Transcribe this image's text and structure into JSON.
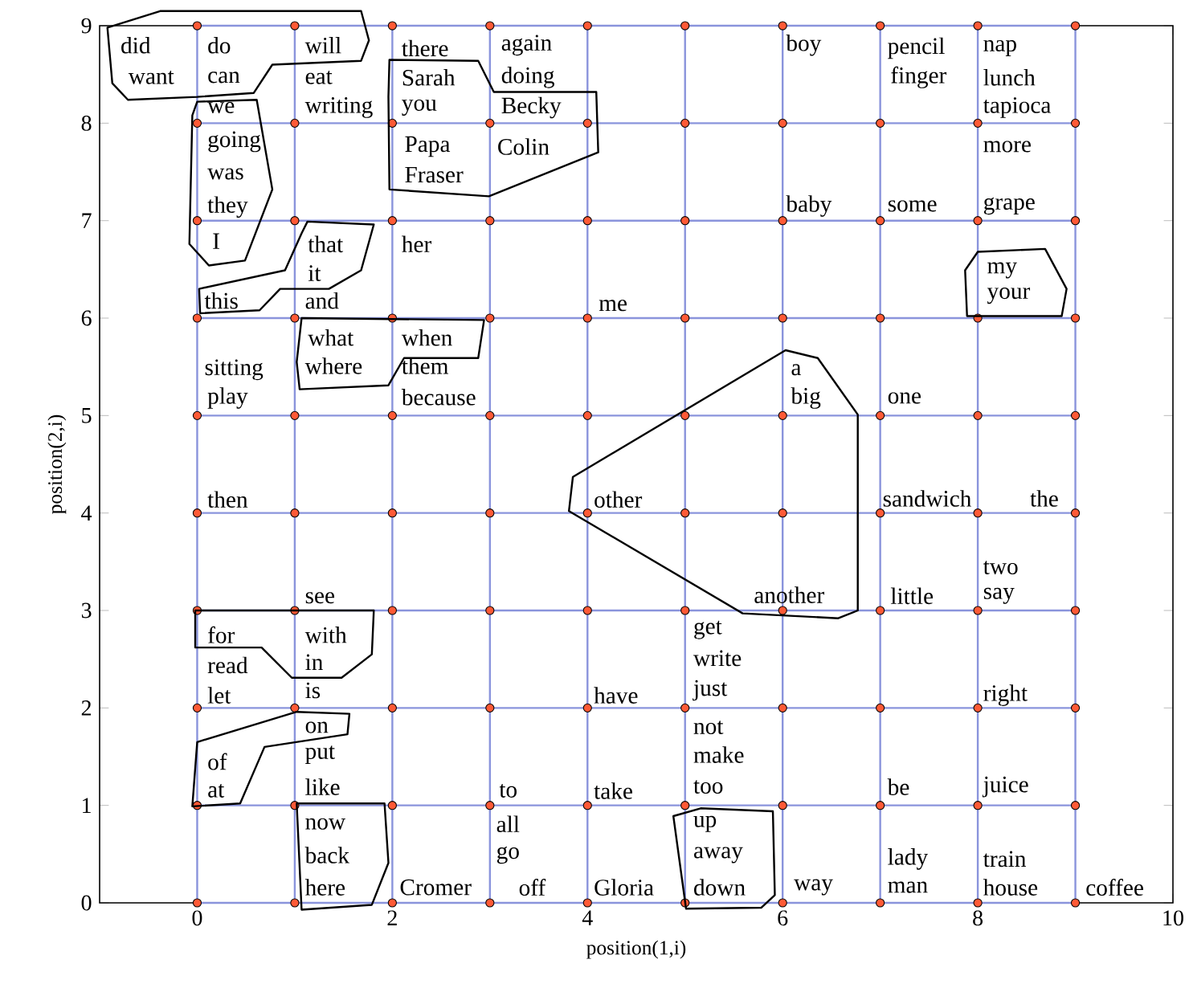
{
  "chart_data": {
    "type": "scatter",
    "xlabel": "position(1,i)",
    "ylabel": "position(2,i)",
    "xlim": [
      -1,
      10
    ],
    "xticks": [
      0,
      2,
      4,
      6,
      8,
      10
    ],
    "ylim": [
      0,
      9
    ],
    "yticks": [
      0,
      1,
      2,
      3,
      4,
      5,
      6,
      7,
      8,
      9
    ],
    "grid": false,
    "series": [
      {
        "type": "line",
        "color": "#8a94dc",
        "x": [
          0,
          1,
          2,
          3,
          4,
          5,
          6,
          7,
          8,
          9
        ],
        "values": [
          0,
          0,
          0,
          0,
          0,
          0,
          0,
          0,
          0,
          0
        ]
      },
      {
        "type": "line",
        "color": "#8a94dc",
        "x": [
          0,
          1,
          2,
          3,
          4,
          5,
          6,
          7,
          8,
          9
        ],
        "values": [
          1,
          1,
          1,
          1,
          1,
          1,
          1,
          1,
          1,
          1
        ]
      },
      {
        "type": "line",
        "color": "#8a94dc",
        "x": [
          0,
          1,
          2,
          3,
          4,
          5,
          6,
          7,
          8,
          9
        ],
        "values": [
          2,
          2,
          2,
          2,
          2,
          2,
          2,
          2,
          2,
          2
        ]
      },
      {
        "type": "line",
        "color": "#8a94dc",
        "x": [
          0,
          1,
          2,
          3,
          4,
          5,
          6,
          7,
          8,
          9
        ],
        "values": [
          3,
          3,
          3,
          3,
          3,
          3,
          3,
          3,
          3,
          3
        ]
      },
      {
        "type": "line",
        "color": "#8a94dc",
        "x": [
          0,
          1,
          2,
          3,
          4,
          5,
          6,
          7,
          8,
          9
        ],
        "values": [
          4,
          4,
          4,
          4,
          4,
          4,
          4,
          4,
          4,
          4
        ]
      },
      {
        "type": "line",
        "color": "#8a94dc",
        "x": [
          0,
          1,
          2,
          3,
          4,
          5,
          6,
          7,
          8,
          9
        ],
        "values": [
          5,
          5,
          5,
          5,
          5,
          5,
          5,
          5,
          5,
          5
        ]
      },
      {
        "type": "line",
        "color": "#8a94dc",
        "x": [
          0,
          1,
          2,
          3,
          4,
          5,
          6,
          7,
          8,
          9
        ],
        "values": [
          6,
          6,
          6,
          6,
          6,
          6,
          6,
          6,
          6,
          6
        ]
      },
      {
        "type": "line",
        "color": "#8a94dc",
        "x": [
          0,
          1,
          2,
          3,
          4,
          5,
          6,
          7,
          8,
          9
        ],
        "values": [
          7,
          7,
          7,
          7,
          7,
          7,
          7,
          7,
          7,
          7
        ]
      },
      {
        "type": "line",
        "color": "#8a94dc",
        "x": [
          0,
          1,
          2,
          3,
          4,
          5,
          6,
          7,
          8,
          9
        ],
        "values": [
          8,
          8,
          8,
          8,
          8,
          8,
          8,
          8,
          8,
          8
        ]
      },
      {
        "type": "line",
        "color": "#8a94dc",
        "x": [
          0,
          1,
          2,
          3,
          4,
          5,
          6,
          7,
          8,
          9
        ],
        "values": [
          9,
          9,
          9,
          9,
          9,
          9,
          9,
          9,
          9,
          9
        ]
      },
      {
        "type": "line",
        "color": "#8a94dc",
        "x": [
          0,
          0,
          0,
          0,
          0,
          0,
          0,
          0,
          0,
          0
        ],
        "values": [
          0,
          1,
          2,
          3,
          4,
          5,
          6,
          7,
          8,
          9
        ]
      },
      {
        "type": "line",
        "color": "#8a94dc",
        "x": [
          1,
          1,
          1,
          1,
          1,
          1,
          1,
          1,
          1,
          1
        ],
        "values": [
          0,
          1,
          2,
          3,
          4,
          5,
          6,
          7,
          8,
          9
        ]
      },
      {
        "type": "line",
        "color": "#8a94dc",
        "x": [
          2,
          2,
          2,
          2,
          2,
          2,
          2,
          2,
          2,
          2
        ],
        "values": [
          0,
          1,
          2,
          3,
          4,
          5,
          6,
          7,
          8,
          9
        ]
      },
      {
        "type": "line",
        "color": "#8a94dc",
        "x": [
          3,
          3,
          3,
          3,
          3,
          3,
          3,
          3,
          3,
          3
        ],
        "values": [
          0,
          1,
          2,
          3,
          4,
          5,
          6,
          7,
          8,
          9
        ]
      },
      {
        "type": "line",
        "color": "#8a94dc",
        "x": [
          4,
          4,
          4,
          4,
          4,
          4,
          4,
          4,
          4,
          4
        ],
        "values": [
          0,
          1,
          2,
          3,
          4,
          5,
          6,
          7,
          8,
          9
        ]
      },
      {
        "type": "line",
        "color": "#8a94dc",
        "x": [
          5,
          5,
          5,
          5,
          5,
          5,
          5,
          5,
          5,
          5
        ],
        "values": [
          0,
          1,
          2,
          3,
          4,
          5,
          6,
          7,
          8,
          9
        ]
      },
      {
        "type": "line",
        "color": "#8a94dc",
        "x": [
          6,
          6,
          6,
          6,
          6,
          6,
          6,
          6,
          6,
          6
        ],
        "values": [
          0,
          1,
          2,
          3,
          4,
          5,
          6,
          7,
          8,
          9
        ]
      },
      {
        "type": "line",
        "color": "#8a94dc",
        "x": [
          7,
          7,
          7,
          7,
          7,
          7,
          7,
          7,
          7,
          7
        ],
        "values": [
          0,
          1,
          2,
          3,
          4,
          5,
          6,
          7,
          8,
          9
        ]
      },
      {
        "type": "line",
        "color": "#8a94dc",
        "x": [
          8,
          8,
          8,
          8,
          8,
          8,
          8,
          8,
          8,
          8
        ],
        "values": [
          0,
          1,
          2,
          3,
          4,
          5,
          6,
          7,
          8,
          9
        ]
      },
      {
        "type": "line",
        "color": "#8a94dc",
        "x": [
          9,
          9,
          9,
          9,
          9,
          9,
          9,
          9,
          9,
          9
        ],
        "values": [
          0,
          1,
          2,
          3,
          4,
          5,
          6,
          7,
          8,
          9
        ]
      },
      {
        "color": "#ff5a36",
        "x": [
          0,
          1,
          2,
          3,
          4,
          5,
          6,
          7,
          8,
          9,
          0,
          1,
          2,
          3,
          4,
          5,
          6,
          7,
          8,
          9,
          0,
          1,
          2,
          3,
          4,
          5,
          6,
          7,
          8,
          9,
          0,
          1,
          2,
          3,
          4,
          5,
          6,
          7,
          8,
          9,
          0,
          1,
          2,
          3,
          4,
          5,
          6,
          7,
          8,
          9,
          0,
          1,
          2,
          3,
          4,
          5,
          6,
          7,
          8,
          9,
          0,
          1,
          2,
          3,
          4,
          5,
          6,
          7,
          8,
          9,
          0,
          1,
          2,
          3,
          4,
          5,
          6,
          7,
          8,
          9,
          0,
          1,
          2,
          3,
          4,
          5,
          6,
          7,
          8,
          9,
          0,
          1,
          2,
          3,
          4,
          5,
          6,
          7,
          8,
          9
        ],
        "values": [
          0,
          0,
          0,
          0,
          0,
          0,
          0,
          0,
          0,
          0,
          1,
          1,
          1,
          1,
          1,
          1,
          1,
          1,
          1,
          1,
          2,
          2,
          2,
          2,
          2,
          2,
          2,
          2,
          2,
          2,
          3,
          3,
          3,
          3,
          3,
          3,
          3,
          3,
          3,
          3,
          4,
          4,
          4,
          4,
          4,
          4,
          4,
          4,
          4,
          4,
          5,
          5,
          5,
          5,
          5,
          5,
          5,
          5,
          5,
          5,
          6,
          6,
          6,
          6,
          6,
          6,
          6,
          6,
          6,
          6,
          7,
          7,
          7,
          7,
          7,
          7,
          7,
          7,
          7,
          7,
          8,
          8,
          8,
          8,
          8,
          8,
          8,
          8,
          8,
          8,
          9,
          9,
          9,
          9,
          9,
          9,
          9,
          9,
          9,
          9
        ]
      }
    ],
    "annotations": [
      {
        "text": "did",
        "x": 0,
        "y": 9
      },
      {
        "text": "want",
        "x": 0,
        "y": 8
      },
      {
        "text": "do",
        "x": 0,
        "y": 9
      },
      {
        "text": "can",
        "x": 0,
        "y": 8
      },
      {
        "text": "we",
        "x": 0,
        "y": 8
      },
      {
        "text": "going",
        "x": 0,
        "y": 8
      },
      {
        "text": "was",
        "x": 0,
        "y": 7
      },
      {
        "text": "they",
        "x": 0,
        "y": 7
      },
      {
        "text": "I",
        "x": 0,
        "y": 7
      },
      {
        "text": "will",
        "x": 1,
        "y": 9
      },
      {
        "text": "eat",
        "x": 1,
        "y": 8
      },
      {
        "text": "writing",
        "x": 1,
        "y": 8
      },
      {
        "text": "that",
        "x": 1,
        "y": 7
      },
      {
        "text": "it",
        "x": 1,
        "y": 6
      },
      {
        "text": "and",
        "x": 1,
        "y": 6
      },
      {
        "text": "this",
        "x": 0,
        "y": 6
      },
      {
        "text": "her",
        "x": 2,
        "y": 7
      },
      {
        "text": "there",
        "x": 2,
        "y": 9
      },
      {
        "text": "Sarah",
        "x": 2,
        "y": 8
      },
      {
        "text": "you",
        "x": 2,
        "y": 8
      },
      {
        "text": "Papa",
        "x": 2,
        "y": 8
      },
      {
        "text": "Fraser",
        "x": 2,
        "y": 7
      },
      {
        "text": "again",
        "x": 3,
        "y": 9
      },
      {
        "text": "doing",
        "x": 3,
        "y": 8
      },
      {
        "text": "Becky",
        "x": 3,
        "y": 8
      },
      {
        "text": "Colin",
        "x": 3,
        "y": 8
      },
      {
        "text": "boy",
        "x": 6,
        "y": 9
      },
      {
        "text": "pencil",
        "x": 7,
        "y": 9
      },
      {
        "text": "finger",
        "x": 7,
        "y": 8
      },
      {
        "text": "nap",
        "x": 8,
        "y": 9
      },
      {
        "text": "lunch",
        "x": 8,
        "y": 8
      },
      {
        "text": "tapioca",
        "x": 8,
        "y": 8
      },
      {
        "text": "more",
        "x": 8,
        "y": 8
      },
      {
        "text": "baby",
        "x": 6,
        "y": 7
      },
      {
        "text": "some",
        "x": 7,
        "y": 7
      },
      {
        "text": "grape",
        "x": 8,
        "y": 7
      },
      {
        "text": "my",
        "x": 8,
        "y": 6
      },
      {
        "text": "your",
        "x": 8,
        "y": 6
      },
      {
        "text": "me",
        "x": 4,
        "y": 6
      },
      {
        "text": "what",
        "x": 1,
        "y": 6
      },
      {
        "text": "where",
        "x": 1,
        "y": 6
      },
      {
        "text": "when",
        "x": 2,
        "y": 6
      },
      {
        "text": "them",
        "x": 2,
        "y": 6
      },
      {
        "text": "because",
        "x": 2,
        "y": 5
      },
      {
        "text": "sitting",
        "x": 0,
        "y": 5
      },
      {
        "text": "play",
        "x": 0,
        "y": 5
      },
      {
        "text": "a",
        "x": 6,
        "y": 5
      },
      {
        "text": "big",
        "x": 6,
        "y": 5
      },
      {
        "text": "one",
        "x": 7,
        "y": 5
      },
      {
        "text": "then",
        "x": 0,
        "y": 4
      },
      {
        "text": "other",
        "x": 4,
        "y": 4
      },
      {
        "text": "sandwich",
        "x": 7,
        "y": 4
      },
      {
        "text": "the",
        "x": 9,
        "y": 4
      },
      {
        "text": "see",
        "x": 1,
        "y": 3
      },
      {
        "text": "with",
        "x": 1,
        "y": 3
      },
      {
        "text": "in",
        "x": 1,
        "y": 2
      },
      {
        "text": "is",
        "x": 1,
        "y": 2
      },
      {
        "text": "for",
        "x": 0,
        "y": 3
      },
      {
        "text": "read",
        "x": 0,
        "y": 2
      },
      {
        "text": "let",
        "x": 0,
        "y": 2
      },
      {
        "text": "two",
        "x": 8,
        "y": 3
      },
      {
        "text": "say",
        "x": 8,
        "y": 3
      },
      {
        "text": "little",
        "x": 7,
        "y": 3
      },
      {
        "text": "another",
        "x": 6,
        "y": 3
      },
      {
        "text": "get",
        "x": 5,
        "y": 3
      },
      {
        "text": "write",
        "x": 5,
        "y": 3
      },
      {
        "text": "just",
        "x": 5,
        "y": 2
      },
      {
        "text": "have",
        "x": 4,
        "y": 2
      },
      {
        "text": "right",
        "x": 8,
        "y": 2
      },
      {
        "text": "on",
        "x": 1,
        "y": 2
      },
      {
        "text": "put",
        "x": 1,
        "y": 2
      },
      {
        "text": "like",
        "x": 1,
        "y": 1
      },
      {
        "text": "of",
        "x": 0,
        "y": 1
      },
      {
        "text": "at",
        "x": 0,
        "y": 1
      },
      {
        "text": "not",
        "x": 5,
        "y": 2
      },
      {
        "text": "make",
        "x": 5,
        "y": 2
      },
      {
        "text": "too",
        "x": 5,
        "y": 1
      },
      {
        "text": "to",
        "x": 3,
        "y": 1
      },
      {
        "text": "take",
        "x": 4,
        "y": 1
      },
      {
        "text": "be",
        "x": 7,
        "y": 1
      },
      {
        "text": "juice",
        "x": 8,
        "y": 1
      },
      {
        "text": "now",
        "x": 1,
        "y": 1
      },
      {
        "text": "back",
        "x": 1,
        "y": 0
      },
      {
        "text": "here",
        "x": 1,
        "y": 0
      },
      {
        "text": "Cromer",
        "x": 2,
        "y": 0
      },
      {
        "text": "all",
        "x": 3,
        "y": 1
      },
      {
        "text": "go",
        "x": 3,
        "y": 0
      },
      {
        "text": "off",
        "x": 3,
        "y": 0
      },
      {
        "text": "Gloria",
        "x": 4,
        "y": 0
      },
      {
        "text": "up",
        "x": 5,
        "y": 1
      },
      {
        "text": "away",
        "x": 5,
        "y": 0
      },
      {
        "text": "down",
        "x": 5,
        "y": 0
      },
      {
        "text": "way",
        "x": 6,
        "y": 0
      },
      {
        "text": "lady",
        "x": 7,
        "y": 0
      },
      {
        "text": "man",
        "x": 7,
        "y": 0
      },
      {
        "text": "train",
        "x": 8,
        "y": 0
      },
      {
        "text": "house",
        "x": 8,
        "y": 0
      },
      {
        "text": "coffee",
        "x": 9,
        "y": 0
      }
    ]
  }
}
